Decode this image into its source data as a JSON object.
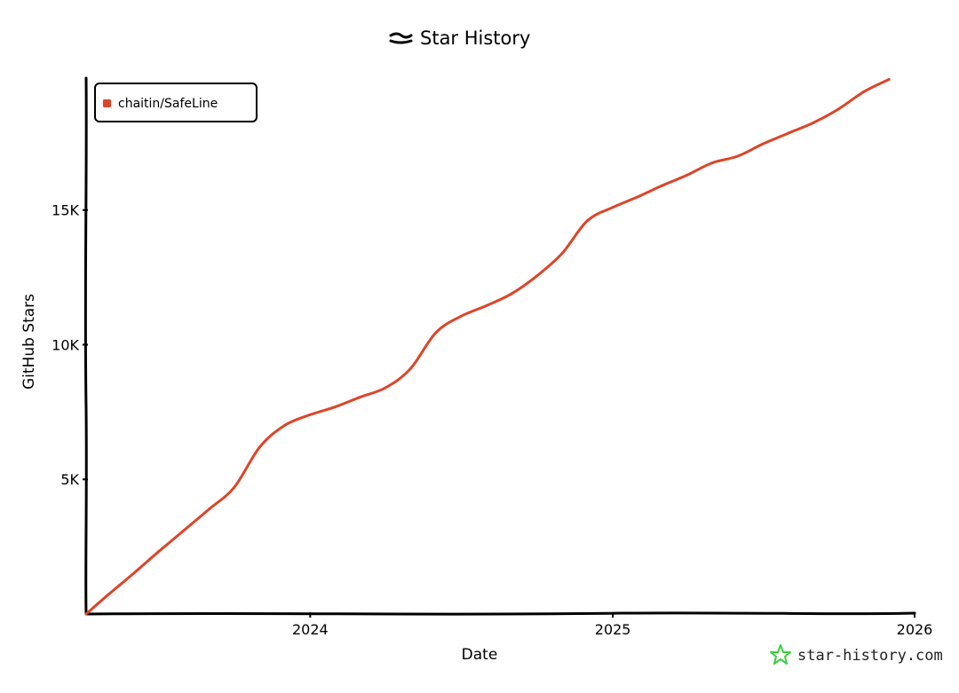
{
  "chart_data": {
    "type": "line",
    "title": "Star History",
    "xlabel": "Date",
    "ylabel": "GitHub Stars",
    "x_ticks": [
      "2024",
      "2025",
      "2026"
    ],
    "y_ticks": [
      "5K",
      "10K",
      "15K"
    ],
    "ylim": [
      0,
      19900
    ],
    "xlim": [
      "2023-04-05",
      "2026-01-01"
    ],
    "grid": false,
    "legend_position": "top-left",
    "series": [
      {
        "name": "chaitin/SafeLine",
        "color": "#dd4528",
        "points": [
          [
            "2023-04-05",
            0
          ],
          [
            "2023-05-01",
            700
          ],
          [
            "2023-06-01",
            1500
          ],
          [
            "2023-07-01",
            2300
          ],
          [
            "2023-08-01",
            3100
          ],
          [
            "2023-09-01",
            3900
          ],
          [
            "2023-10-01",
            4700
          ],
          [
            "2023-11-01",
            6200
          ],
          [
            "2023-12-01",
            7000
          ],
          [
            "2024-01-01",
            7400
          ],
          [
            "2024-02-01",
            7700
          ],
          [
            "2024-03-01",
            8050
          ],
          [
            "2024-04-01",
            8400
          ],
          [
            "2024-05-01",
            9100
          ],
          [
            "2024-06-01",
            10450
          ],
          [
            "2024-07-01",
            11050
          ],
          [
            "2024-08-01",
            11450
          ],
          [
            "2024-09-01",
            11900
          ],
          [
            "2024-10-01",
            12550
          ],
          [
            "2024-11-01",
            13400
          ],
          [
            "2024-12-01",
            14600
          ],
          [
            "2025-01-01",
            15100
          ],
          [
            "2025-02-01",
            15500
          ],
          [
            "2025-03-01",
            15900
          ],
          [
            "2025-04-01",
            16300
          ],
          [
            "2025-05-01",
            16750
          ],
          [
            "2025-06-01",
            17000
          ],
          [
            "2025-07-01",
            17450
          ],
          [
            "2025-08-01",
            17850
          ],
          [
            "2025-09-01",
            18250
          ],
          [
            "2025-10-01",
            18750
          ],
          [
            "2025-11-01",
            19400
          ],
          [
            "2025-12-01",
            19850
          ]
        ]
      }
    ]
  },
  "watermark": {
    "text": "star-history.com",
    "icon": "star-history-logo-icon",
    "icon_color": "#3bd13b"
  },
  "title_icon": "star-history-title-icon"
}
